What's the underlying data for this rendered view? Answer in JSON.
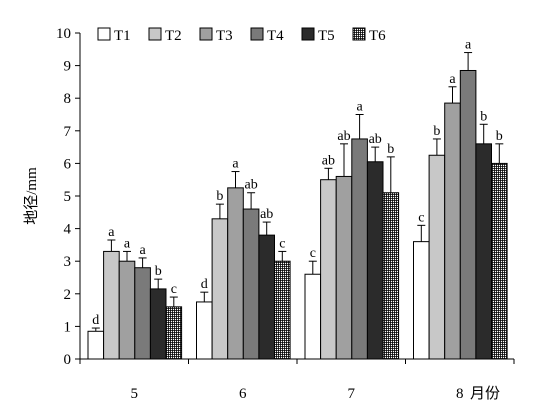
{
  "chart_data": {
    "type": "bar",
    "ylabel": "地径/mm",
    "xlabel": "月份",
    "ylim": [
      0,
      10
    ],
    "yticks": [
      0,
      1,
      2,
      3,
      4,
      5,
      6,
      7,
      8,
      9,
      10
    ],
    "categories": [
      "5",
      "6",
      "7",
      "8"
    ],
    "legend_position": "top",
    "grid": false,
    "series": [
      {
        "name": "T1",
        "values": [
          0.85,
          1.75,
          2.6,
          3.6
        ],
        "errors": [
          0.1,
          0.3,
          0.4,
          0.5
        ],
        "letters": [
          "d",
          "d",
          "c",
          "c"
        ],
        "fill": "#ffffff"
      },
      {
        "name": "T2",
        "values": [
          3.3,
          4.3,
          5.5,
          6.25
        ],
        "errors": [
          0.35,
          0.45,
          0.35,
          0.5
        ],
        "letters": [
          "a",
          "b",
          "ab",
          "b"
        ],
        "fill": "#c8c8c8"
      },
      {
        "name": "T3",
        "values": [
          3.0,
          5.25,
          5.6,
          7.85
        ],
        "errors": [
          0.3,
          0.5,
          1.0,
          0.5
        ],
        "letters": [
          "a",
          "a",
          "ab",
          "a"
        ],
        "fill": "#a0a0a0"
      },
      {
        "name": "T4",
        "values": [
          2.8,
          4.6,
          6.75,
          8.85
        ],
        "errors": [
          0.3,
          0.5,
          0.75,
          0.55
        ],
        "letters": [
          "a",
          "ab",
          "a",
          "a"
        ],
        "fill": "#7a7a7a"
      },
      {
        "name": "T5",
        "values": [
          2.15,
          3.8,
          6.05,
          6.6
        ],
        "errors": [
          0.3,
          0.4,
          0.45,
          0.6
        ],
        "letters": [
          "b",
          "ab",
          "ab",
          "b"
        ],
        "fill": "#2b2b2b"
      },
      {
        "name": "T6",
        "values": [
          1.6,
          3.0,
          5.1,
          6.0
        ],
        "errors": [
          0.3,
          0.3,
          1.1,
          0.6
        ],
        "letters": [
          "c",
          "c",
          "b",
          "b"
        ],
        "fill": "hatch"
      }
    ]
  }
}
